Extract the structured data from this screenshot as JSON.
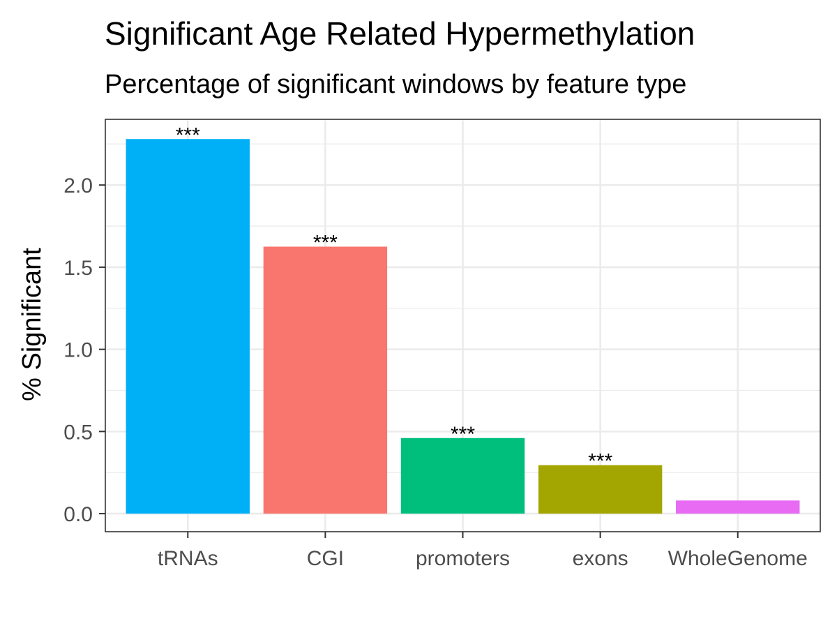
{
  "chart_data": {
    "type": "bar",
    "title": "Significant Age Related Hypermethylation",
    "subtitle": "Percentage of significant windows by feature type",
    "xlabel": "",
    "ylabel": "% Significant",
    "categories": [
      "tRNAs",
      "CGI",
      "promoters",
      "exons",
      "WholeGenome"
    ],
    "values": [
      2.28,
      1.625,
      0.46,
      0.295,
      0.08
    ],
    "annotations": [
      "***",
      "***",
      "***",
      "***",
      ""
    ],
    "colors": [
      "#00B0F6",
      "#F8766D",
      "#00BF7D",
      "#A3A500",
      "#E76BF3"
    ],
    "ylim": [
      -0.11,
      2.4
    ],
    "yticks": [
      0.0,
      0.5,
      1.0,
      1.5,
      2.0
    ],
    "ytick_labels": [
      "0.0",
      "0.5",
      "1.0",
      "1.5",
      "2.0"
    ],
    "grid": true,
    "legend": "none"
  }
}
